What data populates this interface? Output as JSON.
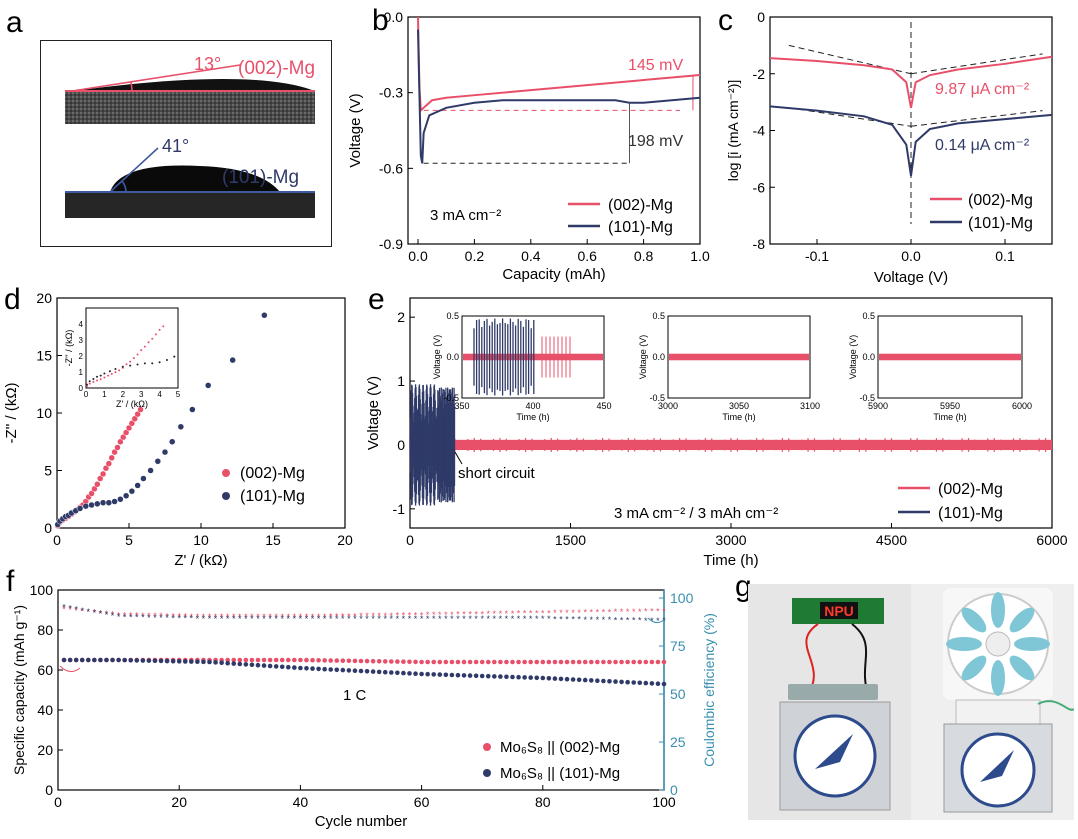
{
  "panels": {
    "a": "a",
    "b": "b",
    "c": "c",
    "d": "d",
    "e": "e",
    "f": "f",
    "g": "g"
  },
  "colors": {
    "mg002": "#e8506a",
    "mg101": "#2f3a68",
    "ce": "#3a8fb0",
    "dash_red": "#e8506a",
    "dash_black": "#222222"
  },
  "photo_a": {
    "top": {
      "angle": "13°",
      "label": "(002)-Mg"
    },
    "bottom": {
      "angle": "41°",
      "label": "(101)-Mg"
    }
  },
  "chart_data": [
    {
      "id": "b",
      "type": "line",
      "xlabel": "Capacity (mAh)",
      "ylabel": "Voltage (V)",
      "xlim": [
        0,
        1.0
      ],
      "ylim": [
        -0.9,
        0.0
      ],
      "xticks": [
        "0.0",
        "0.2",
        "0.4",
        "0.6",
        "0.8",
        "1.0"
      ],
      "yticks": [
        "0.0",
        "-0.3",
        "-0.6",
        "-0.9"
      ],
      "annotations": {
        "a145": "145 mV",
        "a198": "198 mV",
        "cond": "3 mA cm⁻²"
      },
      "series": [
        {
          "name": "(002)-Mg",
          "x": [
            0,
            0.005,
            0.01,
            0.02,
            0.05,
            0.1,
            0.2,
            0.4,
            0.6,
            0.8,
            1.0
          ],
          "y": [
            0.0,
            -0.28,
            -0.37,
            -0.36,
            -0.33,
            -0.32,
            -0.31,
            -0.29,
            -0.27,
            -0.25,
            -0.23
          ]
        },
        {
          "name": "(101)-Mg",
          "x": [
            0,
            0.01,
            0.015,
            0.02,
            0.04,
            0.1,
            0.2,
            0.3,
            0.4,
            0.5,
            0.6,
            0.7,
            0.75,
            0.8,
            0.9,
            1.0
          ],
          "y": [
            -0.05,
            -0.55,
            -0.58,
            -0.46,
            -0.39,
            -0.36,
            -0.34,
            -0.33,
            -0.33,
            -0.33,
            -0.33,
            -0.33,
            -0.34,
            -0.34,
            -0.33,
            -0.32
          ]
        }
      ],
      "legend": "bottom-right"
    },
    {
      "id": "c",
      "type": "line",
      "xlabel": "Voltage (V)",
      "ylabel": "log [i (mA cm⁻²)]",
      "xlim": [
        -0.15,
        0.15
      ],
      "ylim": [
        -8,
        0
      ],
      "xticks": [
        "-0.1",
        "0.0",
        "0.1"
      ],
      "yticks": [
        "0",
        "-2",
        "-4",
        "-6",
        "-8"
      ],
      "annotations": {
        "i002": "9.87 μA cm⁻²",
        "i101": "0.14 μA cm⁻²"
      },
      "series": [
        {
          "name": "(002)-Mg",
          "x": [
            -0.15,
            -0.1,
            -0.05,
            -0.02,
            -0.005,
            0,
            0.005,
            0.02,
            0.05,
            0.1,
            0.15
          ],
          "y": [
            -1.45,
            -1.55,
            -1.7,
            -1.85,
            -2.3,
            -3.2,
            -2.3,
            -2.05,
            -1.85,
            -1.65,
            -1.4
          ]
        },
        {
          "name": "(101)-Mg",
          "x": [
            -0.15,
            -0.1,
            -0.05,
            -0.02,
            -0.005,
            0,
            0.005,
            0.02,
            0.05,
            0.1,
            0.15
          ],
          "y": [
            -3.15,
            -3.3,
            -3.5,
            -3.8,
            -4.5,
            -5.6,
            -4.4,
            -3.95,
            -3.75,
            -3.6,
            -3.45
          ]
        }
      ],
      "legend": "bottom-right"
    },
    {
      "id": "d",
      "type": "scatter",
      "xlabel": "Z' / (kΩ)",
      "ylabel": "-Z'' / (kΩ)",
      "xlim": [
        0,
        20
      ],
      "ylim": [
        0,
        20
      ],
      "xticks": [
        "0",
        "5",
        "10",
        "15",
        "20"
      ],
      "yticks": [
        "0",
        "5",
        "10",
        "15",
        "20"
      ],
      "inset": {
        "xlabel": "Z' / (kΩ)",
        "ylabel": "-Z'' / (kΩ)",
        "xticks": [
          "0",
          "1",
          "2",
          "3",
          "4",
          "5"
        ],
        "yticks": [
          "0",
          "1",
          "2",
          "3",
          "4"
        ]
      },
      "series": [
        {
          "name": "(002)-Mg",
          "x": [
            0.05,
            0.2,
            0.4,
            0.6,
            0.8,
            1.0,
            1.2,
            1.4,
            1.6,
            1.8,
            2.0,
            2.2,
            2.4,
            2.6,
            2.8,
            3.0,
            3.2,
            3.4,
            3.6,
            3.8,
            4.0,
            4.2,
            4.4,
            4.6,
            4.8,
            5.0,
            5.2,
            5.4,
            5.6,
            5.8
          ],
          "y": [
            0.2,
            0.5,
            0.7,
            0.85,
            1.0,
            1.2,
            1.4,
            1.6,
            1.8,
            2.0,
            2.3,
            2.7,
            3.0,
            3.4,
            3.8,
            4.3,
            4.7,
            5.2,
            5.6,
            6.1,
            6.6,
            7.0,
            7.5,
            7.9,
            8.3,
            8.7,
            9.1,
            9.5,
            9.9,
            10.3
          ]
        },
        {
          "name": "(101)-Mg",
          "x": [
            0.05,
            0.2,
            0.4,
            0.6,
            0.8,
            1.0,
            1.3,
            1.6,
            2.0,
            2.4,
            2.8,
            3.2,
            3.6,
            4.0,
            4.4,
            4.8,
            5.2,
            5.6,
            6.0,
            6.5,
            7.0,
            7.5,
            8.0,
            8.6,
            9.4,
            10.5,
            12.2,
            14.4
          ],
          "y": [
            0.3,
            0.6,
            0.8,
            1.0,
            1.1,
            1.3,
            1.5,
            1.7,
            1.9,
            2.0,
            2.1,
            2.2,
            2.2,
            2.3,
            2.5,
            2.8,
            3.2,
            3.7,
            4.3,
            5.0,
            5.8,
            6.6,
            7.5,
            8.8,
            10.3,
            12.4,
            14.6,
            18.5
          ]
        }
      ],
      "legend": "right-middle"
    },
    {
      "id": "e",
      "type": "line",
      "xlabel": "Time (h)",
      "ylabel": "Voltage (V)",
      "xlim": [
        0,
        6000
      ],
      "ylim": [
        -1.3,
        2.3
      ],
      "xticks": [
        "0",
        "1500",
        "3000",
        "4500",
        "6000"
      ],
      "yticks": [
        "-1",
        "0",
        "1",
        "2"
      ],
      "annotations": {
        "short": "short circuit",
        "cond": "3 mA cm⁻² / 3 mAh cm⁻²"
      },
      "insets": [
        {
          "xticks": [
            "350",
            "400",
            "450"
          ],
          "yticks": [
            "0.5",
            "0.0",
            "-0.5"
          ],
          "xlabel": "Time (h)",
          "ylabel": "Voltage (V)"
        },
        {
          "xticks": [
            "3000",
            "3050",
            "3100"
          ],
          "yticks": [
            "0.5",
            "0.0",
            "-0.5"
          ],
          "xlabel": "Time (h)",
          "ylabel": "Voltage (V)"
        },
        {
          "xticks": [
            "5900",
            "5950",
            "6000"
          ],
          "yticks": [
            "0.5",
            "0.0",
            "-0.5"
          ],
          "xlabel": "Time (h)",
          "ylabel": "Voltage (V)"
        }
      ],
      "series": [
        {
          "name": "(002)-Mg"
        },
        {
          "name": "(101)-Mg"
        }
      ],
      "legend": "bottom-right"
    },
    {
      "id": "f",
      "type": "scatter",
      "xlabel": "Cycle number",
      "ylabel": "Specific capacity (mAh g⁻¹)",
      "y2label": "Coulombic efficiency (%)",
      "xlim": [
        0,
        100
      ],
      "ylim": [
        0,
        100
      ],
      "y2lim": [
        0,
        100
      ],
      "xticks": [
        "0",
        "20",
        "40",
        "60",
        "80",
        "100"
      ],
      "yticks": [
        "0",
        "20",
        "40",
        "60",
        "80",
        "100"
      ],
      "y2ticks": [
        "0",
        "25",
        "50",
        "75",
        "100"
      ],
      "annotations": {
        "rate": "1 C"
      },
      "series": [
        {
          "name": "Mo₆S₈ || (002)-Mg",
          "capacity": [
            65,
            65,
            65,
            65,
            64,
            64,
            64
          ],
          "ce": [
            94,
            91,
            90,
            90,
            91,
            92,
            93
          ],
          "cycles": [
            1,
            10,
            25,
            40,
            60,
            80,
            100
          ]
        },
        {
          "name": "Mo₆S₈ || (101)-Mg",
          "capacity": [
            65,
            65,
            64,
            61,
            58,
            56,
            53
          ],
          "ce": [
            95,
            90,
            89,
            89,
            89,
            89,
            88
          ],
          "cycles": [
            1,
            10,
            25,
            40,
            60,
            80,
            100
          ]
        }
      ],
      "legend": "bottom-right"
    }
  ],
  "photo_g": {
    "display": "NPU"
  }
}
